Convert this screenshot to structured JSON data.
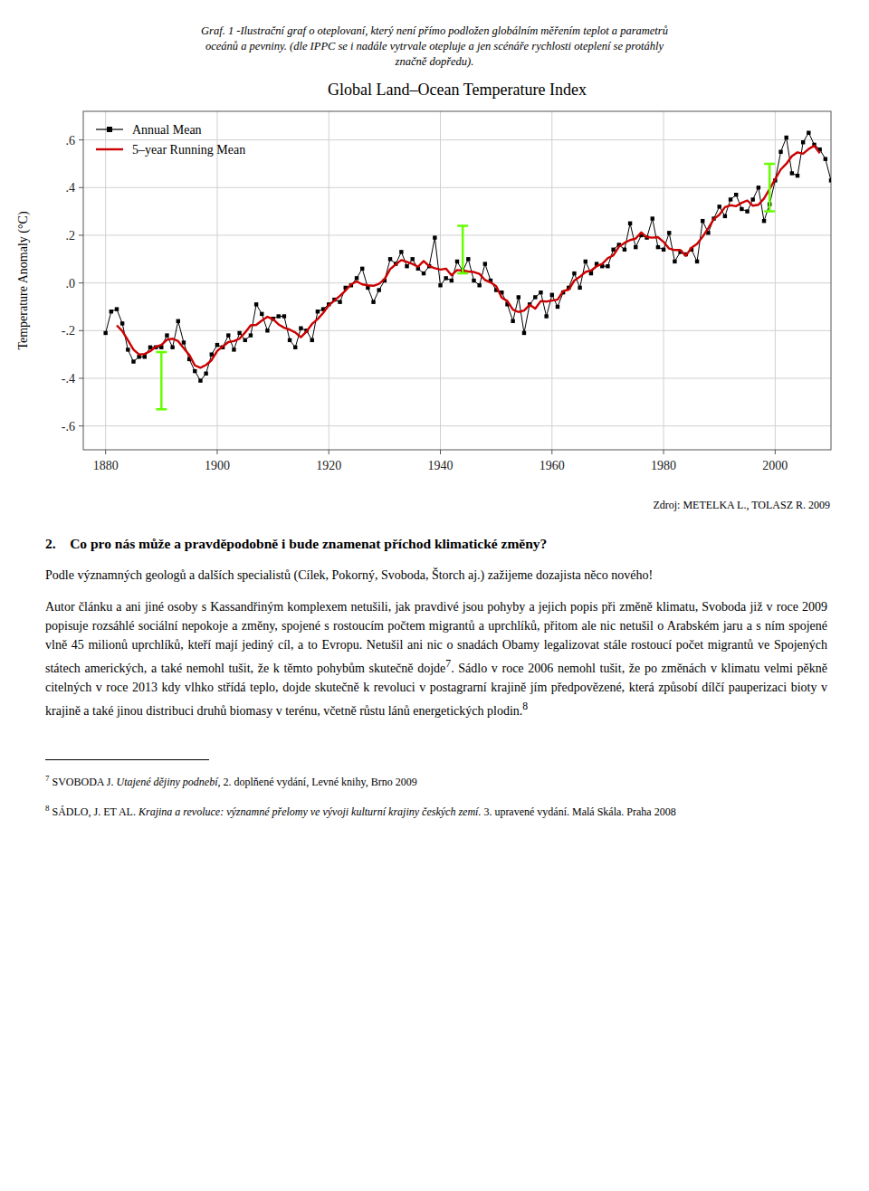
{
  "header": [
    "Graf. 1 -Ilustrační graf o oteplovaní, který není přímo podložen globálním měřením teplot a parametrů",
    "oceánů a pevniny. (dle IPPC se i nadále vytrvale otepluje a jen scénáře rychlosti oteplení se protáhly",
    "značně dopředu)."
  ],
  "chart_data": {
    "type": "line",
    "title": "Global Land–Ocean Temperature Index",
    "y_label": "Temperature Anomaly (°C)",
    "x": [
      1880,
      1881,
      1882,
      1883,
      1884,
      1885,
      1886,
      1887,
      1888,
      1889,
      1890,
      1891,
      1892,
      1893,
      1894,
      1895,
      1896,
      1897,
      1898,
      1899,
      1900,
      1901,
      1902,
      1903,
      1904,
      1905,
      1906,
      1907,
      1908,
      1909,
      1910,
      1911,
      1912,
      1913,
      1914,
      1915,
      1916,
      1917,
      1918,
      1919,
      1920,
      1921,
      1922,
      1923,
      1924,
      1925,
      1926,
      1927,
      1928,
      1929,
      1930,
      1931,
      1932,
      1933,
      1934,
      1935,
      1936,
      1937,
      1938,
      1939,
      1940,
      1941,
      1942,
      1943,
      1944,
      1945,
      1946,
      1947,
      1948,
      1949,
      1950,
      1951,
      1952,
      1953,
      1954,
      1955,
      1956,
      1957,
      1958,
      1959,
      1960,
      1961,
      1962,
      1963,
      1964,
      1965,
      1966,
      1967,
      1968,
      1969,
      1970,
      1971,
      1972,
      1973,
      1974,
      1975,
      1976,
      1977,
      1978,
      1979,
      1980,
      1981,
      1982,
      1983,
      1984,
      1985,
      1986,
      1987,
      1988,
      1989,
      1990,
      1991,
      1992,
      1993,
      1994,
      1995,
      1996,
      1997,
      1998,
      1999,
      2000,
      2001,
      2002,
      2003,
      2004,
      2005,
      2006,
      2007,
      2008,
      2009,
      2010
    ],
    "series": [
      {
        "name": "Annual Mean",
        "color": "#000000",
        "marker": "square",
        "values": [
          -0.21,
          -0.12,
          -0.11,
          -0.17,
          -0.28,
          -0.33,
          -0.31,
          -0.31,
          -0.27,
          -0.27,
          -0.27,
          -0.22,
          -0.27,
          -0.16,
          -0.25,
          -0.32,
          -0.37,
          -0.41,
          -0.38,
          -0.3,
          -0.26,
          -0.27,
          -0.22,
          -0.28,
          -0.21,
          -0.24,
          -0.22,
          -0.09,
          -0.13,
          -0.2,
          -0.15,
          -0.14,
          -0.14,
          -0.24,
          -0.27,
          -0.19,
          -0.2,
          -0.24,
          -0.12,
          -0.11,
          -0.09,
          -0.07,
          -0.08,
          -0.02,
          -0.01,
          0.02,
          0.06,
          -0.02,
          -0.08,
          -0.03,
          0.01,
          0.1,
          0.08,
          0.13,
          0.07,
          0.1,
          0.06,
          0.04,
          0.07,
          0.19,
          -0.01,
          0.02,
          0.01,
          0.09,
          0.05,
          0.1,
          0.01,
          -0.01,
          0.08,
          0.01,
          -0.03,
          -0.04,
          -0.09,
          -0.16,
          -0.06,
          -0.21,
          -0.09,
          -0.06,
          -0.04,
          -0.14,
          -0.05,
          -0.1,
          -0.04,
          -0.02,
          0.04,
          -0.02,
          0.09,
          0.04,
          0.08,
          0.07,
          0.07,
          0.14,
          0.16,
          0.14,
          0.25,
          0.15,
          0.2,
          0.19,
          0.27,
          0.15,
          0.14,
          0.21,
          0.09,
          0.13,
          0.12,
          0.14,
          0.09,
          0.26,
          0.21,
          0.27,
          0.32,
          0.28,
          0.35,
          0.37,
          0.31,
          0.3,
          0.35,
          0.4,
          0.26,
          0.33,
          0.43,
          0.55,
          0.61,
          0.46,
          0.45,
          0.59,
          0.63,
          0.58,
          0.56,
          0.52,
          0.43
        ]
      },
      {
        "name": "5–year Running Mean",
        "color": "#cc0000",
        "values": [
          null,
          null,
          -0.178,
          -0.202,
          -0.24,
          -0.28,
          -0.3,
          -0.298,
          -0.286,
          -0.268,
          -0.26,
          -0.238,
          -0.234,
          -0.244,
          -0.274,
          -0.302,
          -0.346,
          -0.356,
          -0.344,
          -0.324,
          -0.286,
          -0.266,
          -0.248,
          -0.244,
          -0.234,
          -0.208,
          -0.178,
          -0.176,
          -0.158,
          -0.142,
          -0.152,
          -0.174,
          -0.188,
          -0.196,
          -0.208,
          -0.228,
          -0.204,
          -0.172,
          -0.152,
          -0.126,
          -0.094,
          -0.074,
          -0.054,
          -0.032,
          -0.006,
          0.006,
          -0.006,
          -0.01,
          -0.012,
          -0.004,
          0.016,
          0.058,
          0.078,
          0.096,
          0.088,
          0.08,
          0.068,
          0.092,
          0.07,
          0.062,
          0.056,
          0.06,
          0.032,
          0.054,
          0.052,
          0.048,
          0.046,
          0.038,
          0.012,
          0.002,
          -0.014,
          -0.062,
          -0.076,
          -0.112,
          -0.122,
          -0.116,
          -0.092,
          -0.108,
          -0.076,
          -0.078,
          -0.074,
          -0.07,
          -0.034,
          -0.028,
          0.01,
          0.026,
          0.046,
          0.052,
          0.07,
          0.08,
          0.104,
          0.116,
          0.152,
          0.168,
          0.18,
          0.186,
          0.212,
          0.192,
          0.19,
          0.192,
          0.172,
          0.144,
          0.138,
          0.138,
          0.114,
          0.148,
          0.164,
          0.194,
          0.23,
          0.268,
          0.286,
          0.318,
          0.326,
          0.322,
          0.336,
          0.346,
          0.324,
          0.328,
          0.354,
          0.394,
          0.436,
          0.476,
          0.5,
          0.532,
          0.548,
          0.542,
          0.562,
          0.576,
          0.544,
          null,
          null
        ]
      }
    ],
    "error_bars": {
      "color": "#66ff00",
      "x": [
        1890,
        1944,
        1999
      ],
      "values": [
        -0.41,
        0.14,
        0.4
      ],
      "errors": [
        0.12,
        0.1,
        0.1
      ]
    },
    "xlim": [
      1876,
      2010
    ],
    "xticks": [
      1880,
      1900,
      1920,
      1940,
      1960,
      1980,
      2000
    ],
    "ylim": [
      -0.7,
      0.72
    ],
    "yticks": [
      {
        "value": -0.6,
        "label": "-.6"
      },
      {
        "value": -0.4,
        "label": "-.4"
      },
      {
        "value": -0.2,
        "label": "-.2"
      },
      {
        "value": 0.0,
        "label": ".0"
      },
      {
        "value": 0.2,
        "label": ".2"
      },
      {
        "value": 0.4,
        "label": ".4"
      },
      {
        "value": 0.6,
        "label": ".6"
      }
    ],
    "grid": true,
    "legend": "upper left"
  },
  "source": "Zdroj: METELKA L., TOLASZ R. 2009",
  "section_title": "2. Co pro nás může a pravděpodobně i bude znamenat příchod klimatické změny?",
  "paragraph1": "Podle významných geologů a dalších specialistů (Cílek, Pokorný, Svoboda, Štorch aj.) zažijeme dozajista něco nového!",
  "paragraph2": {
    "parts": [
      "Autor článku a ani jiné osoby s Kassandřiným komplexem netušili, jak pravdivé jsou pohyby a jejich popis při změně klimatu, Svoboda již v roce 2009 popisuje rozsáhlé sociální nepokoje a změny, spojené s rostoucím počtem migrantů a uprchlíků, přitom ale nic netušil o Arabském jaru a s ním spojené vlně 45 milionů uprchlíků, kteří mají jediný cíl, a to Evropu. Netušil ani nic o snadách Obamy legalizovat stále rostoucí počet migrantů ve Spojených státech amerických, a také nemohl tušit, že k těmto pohybům skutečně dojde",
      ". Sádlo v roce 2006 nemohl tušit, že po změnách v klimatu velmi pěkně citelných v roce 2013 kdy vlhko střídá teplo, dojde skutečně k revoluci v postagrarní krajině jím předpovězené, která způsobí dílčí pauperizaci bioty v krajině a také jinou distribuci druhů biomasy v terénu, včetně růstu lánů energetických plodin."
    ],
    "superscripts": [
      "7",
      "8"
    ]
  },
  "footnotes": [
    {
      "number": "7",
      "normal": " SVOBODA J. ",
      "italic": "Utajené dějiny podnebí,",
      "rest": " 2. doplňené vydání, Levné knihy, Brno 2009"
    },
    {
      "number": "8",
      "normal": " SÁDLO, J. ET AL. ",
      "italic": "Krajina a revoluce: významné přelomy ve vývoji kulturní krajiny českých zemí.",
      "rest": " 3. upravené vydání. Malá Skála. Praha 2008"
    }
  ]
}
